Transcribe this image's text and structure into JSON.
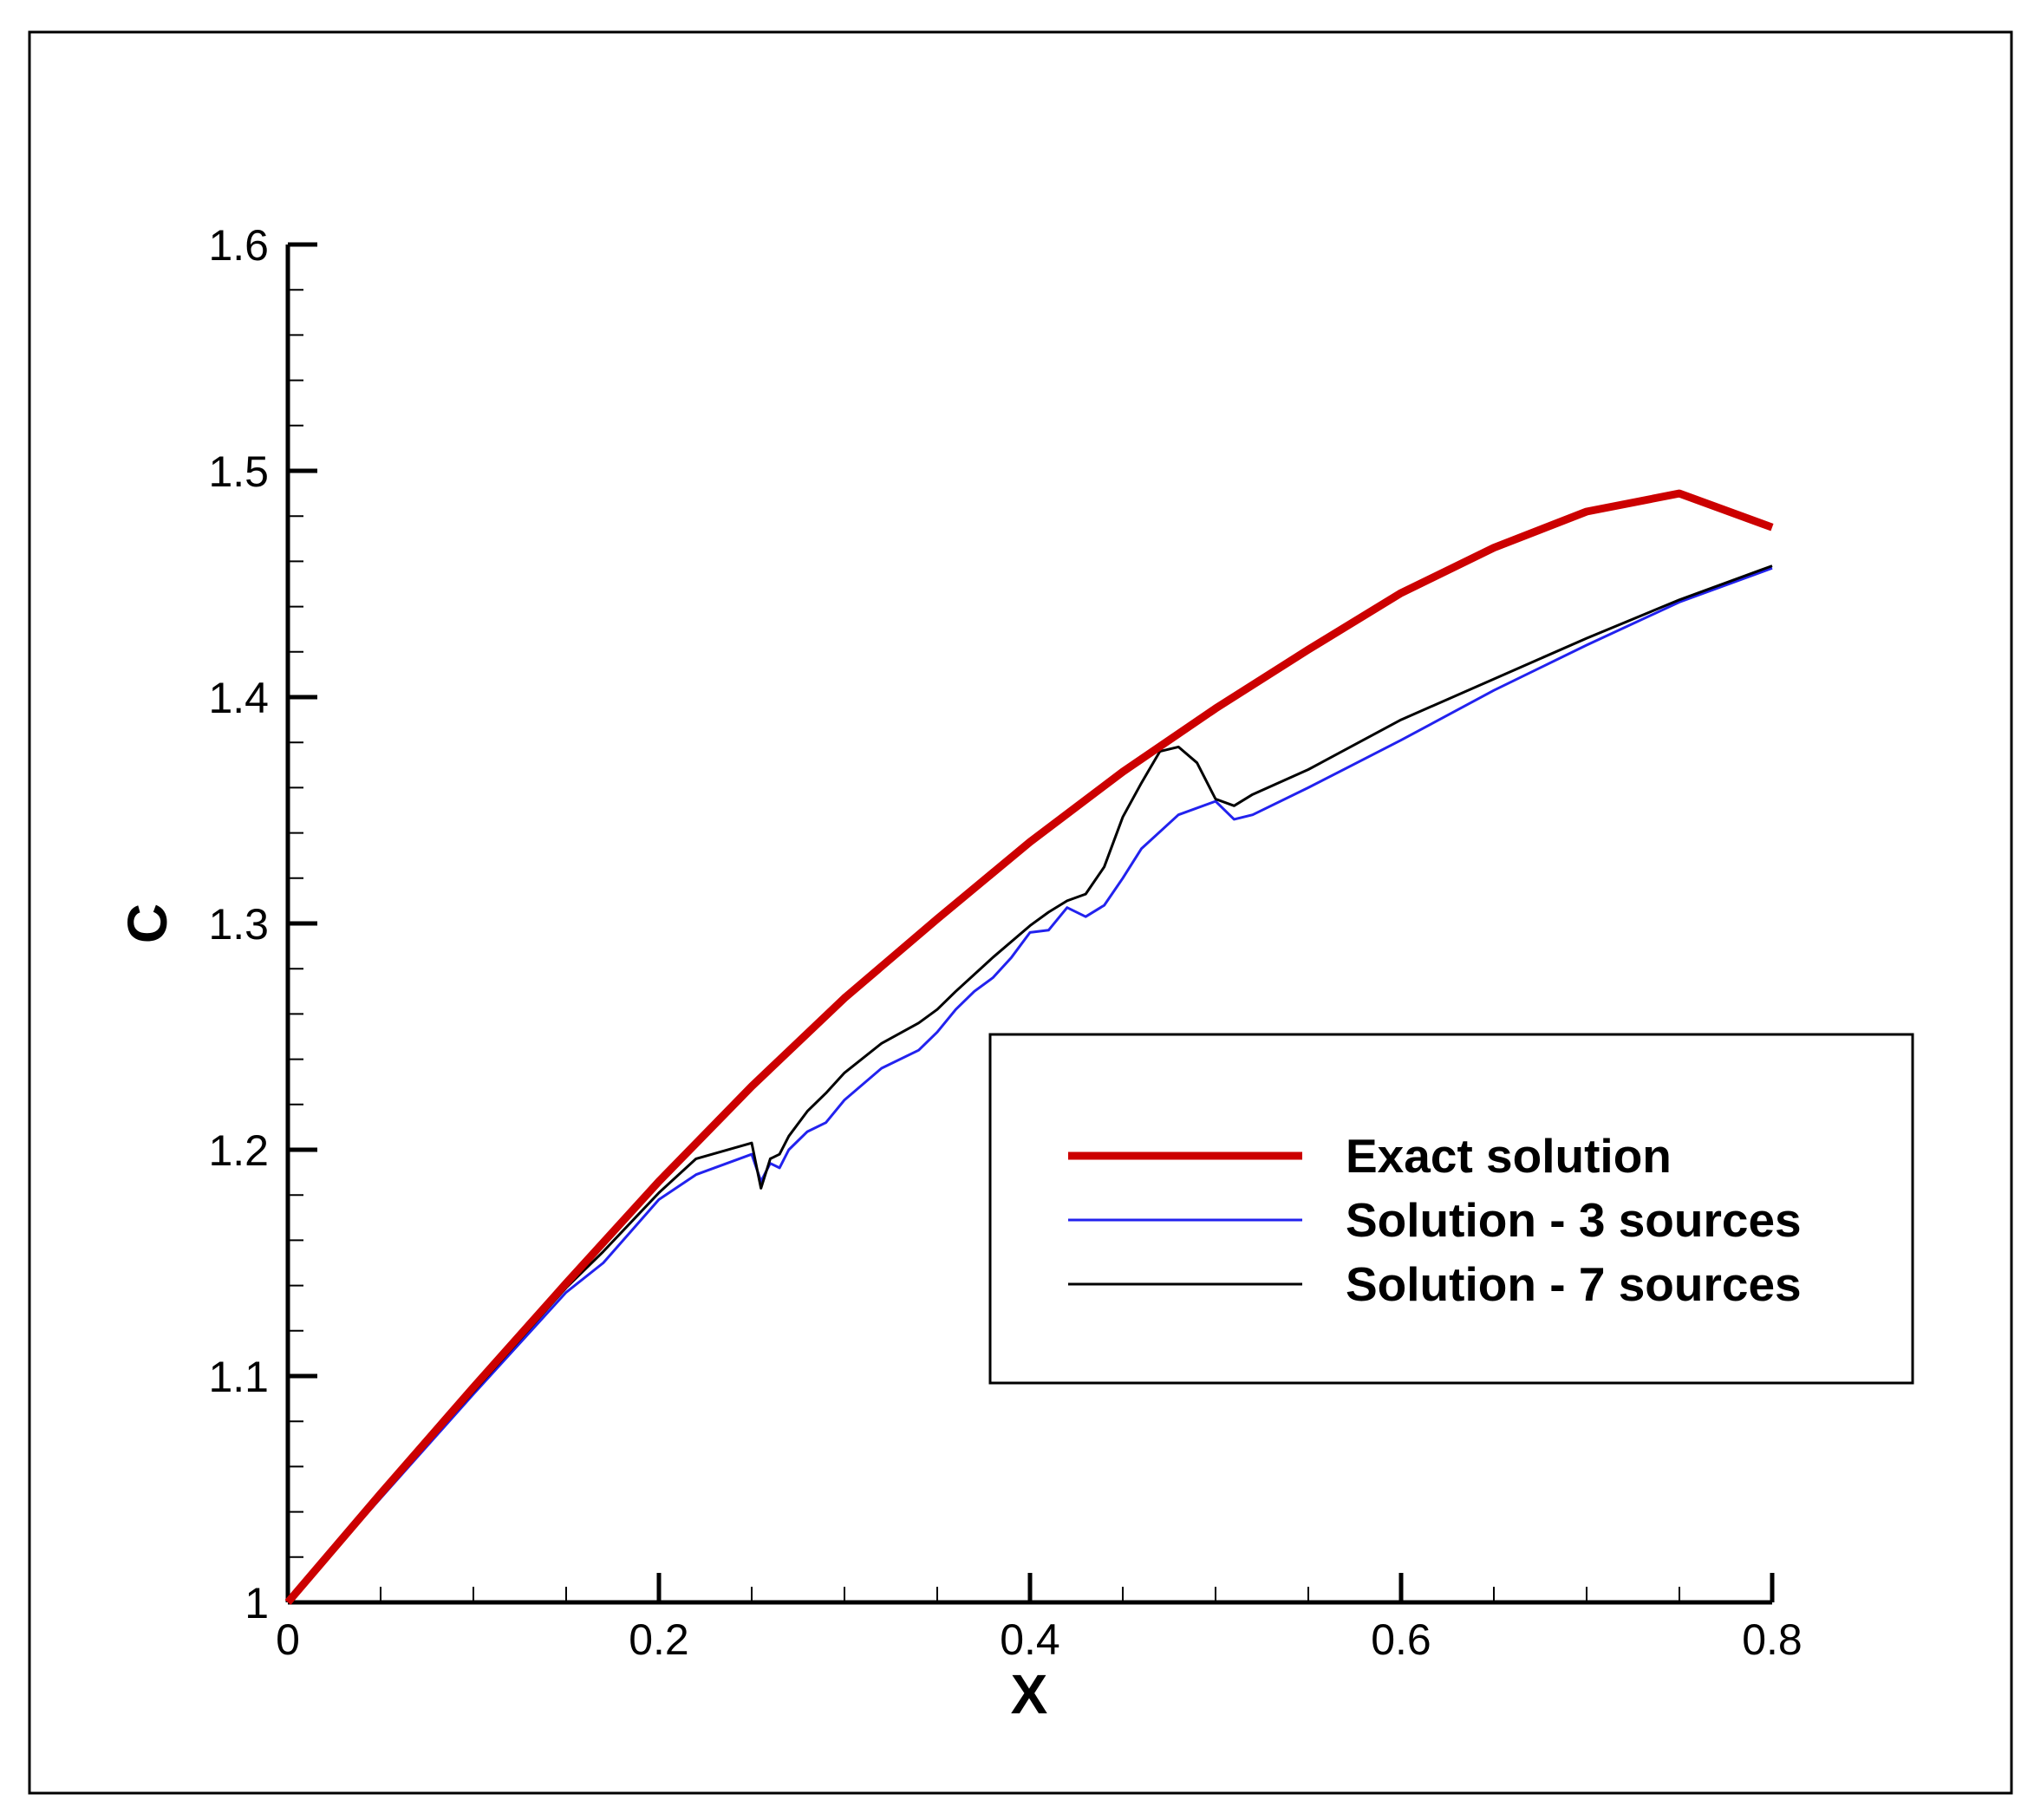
{
  "chart_data": {
    "type": "line",
    "xlabel": "X",
    "ylabel": "C",
    "xlim": [
      0,
      0.8
    ],
    "ylim": [
      1,
      1.6
    ],
    "x_ticks": [
      "0",
      "0.2",
      "0.4",
      "0.6",
      "0.8"
    ],
    "y_ticks": [
      "1",
      "1.1",
      "1.2",
      "1.3",
      "1.4",
      "1.5",
      "1.6"
    ],
    "legend_position": "center-right",
    "grid": false,
    "series": [
      {
        "name": "Exact solution",
        "color": "#cc0000",
        "x": [
          0,
          0.05,
          0.1,
          0.15,
          0.2,
          0.25,
          0.3,
          0.35,
          0.4,
          0.45,
          0.5,
          0.55,
          0.6,
          0.65,
          0.7,
          0.75,
          0.8
        ],
        "y": [
          1.0,
          1.048,
          1.095,
          1.141,
          1.186,
          1.228,
          1.267,
          1.302,
          1.336,
          1.367,
          1.395,
          1.421,
          1.446,
          1.466,
          1.482,
          1.49,
          1.475
        ]
      },
      {
        "name": "Solution - 3 sources",
        "color": "#2222ee",
        "x": [
          0,
          0.05,
          0.1,
          0.15,
          0.17,
          0.2,
          0.22,
          0.25,
          0.255,
          0.26,
          0.265,
          0.27,
          0.28,
          0.29,
          0.3,
          0.32,
          0.34,
          0.35,
          0.36,
          0.37,
          0.38,
          0.39,
          0.4,
          0.41,
          0.42,
          0.43,
          0.44,
          0.45,
          0.46,
          0.48,
          0.5,
          0.51,
          0.52,
          0.55,
          0.6,
          0.65,
          0.7,
          0.75,
          0.8
        ],
        "y": [
          1.0,
          1.046,
          1.092,
          1.137,
          1.15,
          1.178,
          1.189,
          1.198,
          1.186,
          1.194,
          1.192,
          1.2,
          1.208,
          1.212,
          1.222,
          1.236,
          1.244,
          1.252,
          1.262,
          1.27,
          1.276,
          1.285,
          1.296,
          1.297,
          1.307,
          1.303,
          1.308,
          1.32,
          1.333,
          1.348,
          1.354,
          1.346,
          1.348,
          1.36,
          1.381,
          1.403,
          1.423,
          1.442,
          1.457
        ]
      },
      {
        "name": "Solution - 7 sources",
        "color": "#000000",
        "x": [
          0,
          0.05,
          0.1,
          0.15,
          0.17,
          0.2,
          0.22,
          0.25,
          0.255,
          0.26,
          0.265,
          0.27,
          0.28,
          0.29,
          0.3,
          0.32,
          0.34,
          0.35,
          0.36,
          0.38,
          0.4,
          0.41,
          0.42,
          0.43,
          0.44,
          0.45,
          0.46,
          0.47,
          0.48,
          0.49,
          0.5,
          0.51,
          0.52,
          0.55,
          0.6,
          0.65,
          0.7,
          0.75,
          0.8
        ],
        "y": [
          1.0,
          1.047,
          1.093,
          1.139,
          1.155,
          1.181,
          1.196,
          1.203,
          1.183,
          1.196,
          1.198,
          1.206,
          1.217,
          1.225,
          1.234,
          1.247,
          1.256,
          1.262,
          1.27,
          1.285,
          1.299,
          1.305,
          1.31,
          1.313,
          1.325,
          1.347,
          1.362,
          1.376,
          1.378,
          1.371,
          1.355,
          1.352,
          1.357,
          1.368,
          1.39,
          1.408,
          1.426,
          1.443,
          1.458
        ]
      }
    ]
  }
}
